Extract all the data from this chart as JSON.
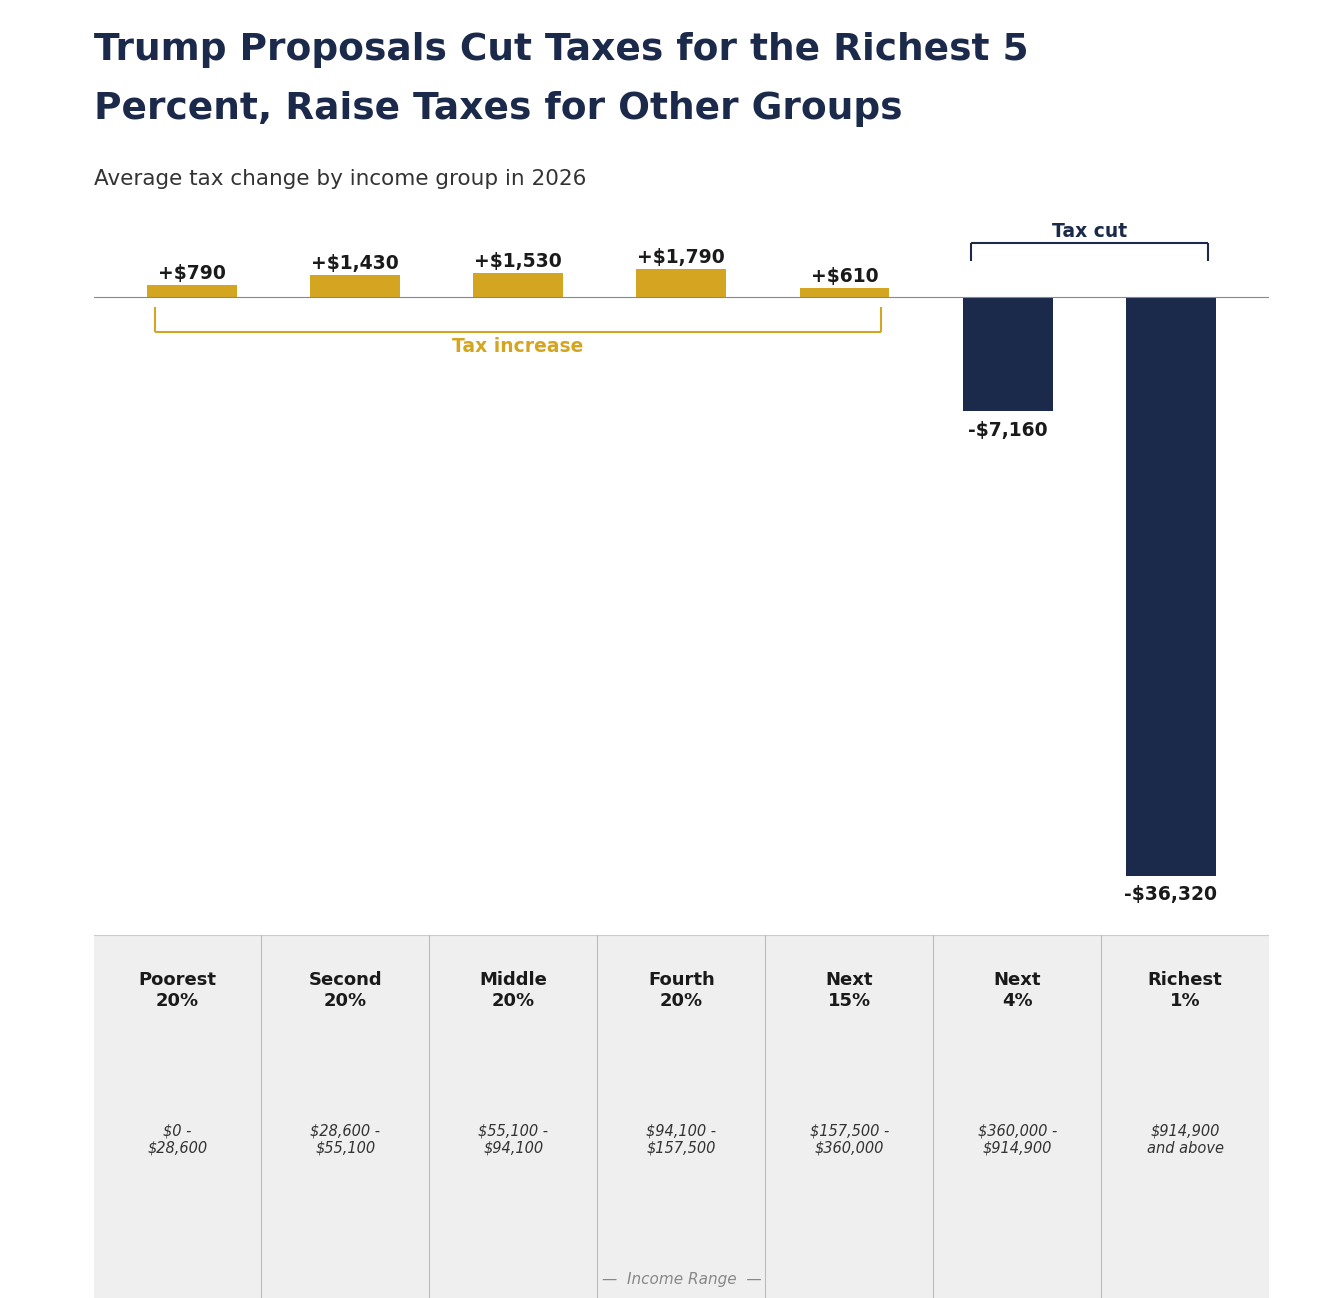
{
  "title_line1": "Trump Proposals Cut Taxes for the Richest 5",
  "title_line2": "Percent, Raise Taxes for Other Groups",
  "subtitle": "Average tax change by income group in 2026",
  "categories": [
    "Poorest\n20%",
    "Second\n20%",
    "Middle\n20%",
    "Fourth\n20%",
    "Next\n15%",
    "Next\n4%",
    "Richest\n1%"
  ],
  "income_ranges": [
    "$0 -\n$28,600",
    "$28,600 -\n$55,100",
    "$55,100 -\n$94,100",
    "$94,100 -\n$157,500",
    "$157,500 -\n$360,000",
    "$360,000 -\n$914,900",
    "$914,900\nand above"
  ],
  "values": [
    790,
    1430,
    1530,
    1790,
    610,
    -7160,
    -36320
  ],
  "value_labels": [
    "+$790",
    "+$1,430",
    "+$1,530",
    "+$1,790",
    "+$610",
    "-$7,160",
    "-$36,320"
  ],
  "bar_colors": [
    "#D4A520",
    "#D4A520",
    "#D4A520",
    "#D4A520",
    "#D4A520",
    "#1B2A4A",
    "#1B2A4A"
  ],
  "positive_color": "#D4A520",
  "negative_color": "#1B2A4A",
  "tax_increase_color": "#D4A520",
  "tax_cut_color": "#1B2A4A",
  "background_color": "#FFFFFF",
  "footer_bg_color": "#EFEFEF",
  "title_color": "#1B2A4A",
  "subtitle_color": "#333333",
  "label_color": "#1a1a1a",
  "xlabel": "Income Range",
  "ylim": [
    -40000,
    4000
  ]
}
